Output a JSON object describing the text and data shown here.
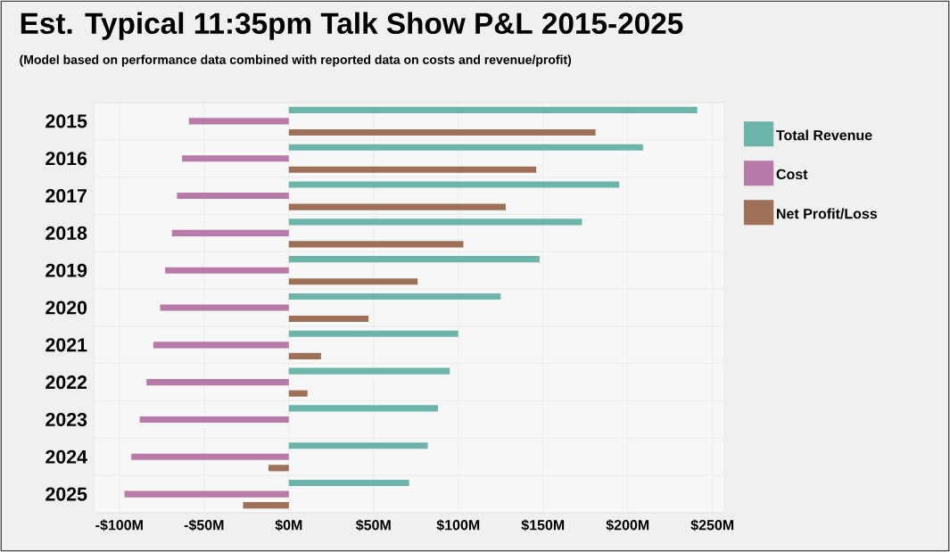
{
  "chart_data": {
    "type": "bar",
    "orientation": "horizontal",
    "title": "Est. Typical 11:35pm Talk Show P&L 2015-2025",
    "subtitle": "(Model based on performance data combined with reported data on costs and revenue/profit)",
    "categories": [
      "2015",
      "2016",
      "2017",
      "2018",
      "2019",
      "2020",
      "2021",
      "2022",
      "2023",
      "2024",
      "2025"
    ],
    "series": [
      {
        "name": "Total Revenue",
        "color": "#6db5ab",
        "values": [
          241,
          209,
          195,
          173,
          148,
          125,
          100,
          95,
          88,
          82,
          71
        ]
      },
      {
        "name": "Cost",
        "color": "#b87aa8",
        "values": [
          -59,
          -63,
          -66,
          -69,
          -73,
          -76,
          -80,
          -84,
          -88,
          -93,
          -97
        ]
      },
      {
        "name": "Net Profit/Loss",
        "color": "#9e7058",
        "values": [
          181,
          146,
          128,
          103,
          76,
          47,
          19,
          11,
          0,
          -12,
          -27
        ]
      }
    ],
    "xlim": [
      -115,
      257
    ],
    "xticks": [
      {
        "value": -100,
        "label": "-$100M"
      },
      {
        "value": -50,
        "label": "-$50M"
      },
      {
        "value": 0,
        "label": "$0M"
      },
      {
        "value": 50,
        "label": "$50M"
      },
      {
        "value": 100,
        "label": "$100M"
      },
      {
        "value": 150,
        "label": "$150M"
      },
      {
        "value": 200,
        "label": "$200M"
      },
      {
        "value": 250,
        "label": "$250M"
      }
    ],
    "grid": true,
    "legend": "right"
  }
}
